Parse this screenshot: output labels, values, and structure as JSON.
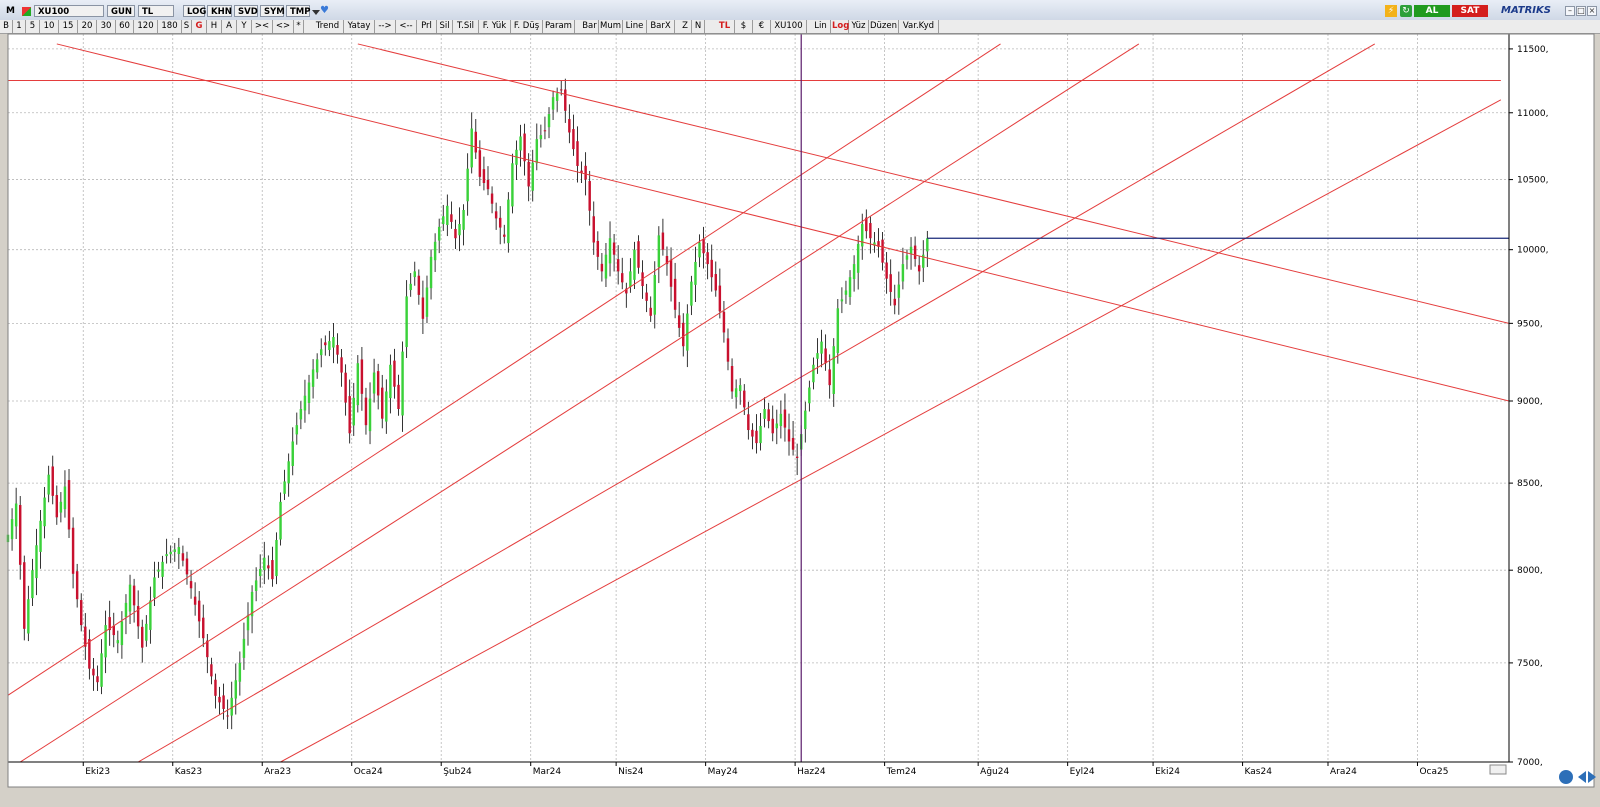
{
  "titlebar": {
    "menu_letter": "M",
    "symbol": "XU100",
    "period": "GUN",
    "currency": "TL",
    "buttons": [
      "LOG",
      "KHN",
      "SVD",
      "SYM",
      "TMP"
    ],
    "buy_label": "AL",
    "sell_label": "SAT",
    "brand": "MATRIKS",
    "colors": {
      "buy": "#1f9a1f",
      "sell": "#d41e1e",
      "brand": "#1b3a8a"
    }
  },
  "toolbar": {
    "items": [
      "B",
      "1",
      "5",
      "10",
      "15",
      "20",
      "30",
      "60",
      "120",
      "180",
      "S",
      "G",
      "H",
      "A",
      "Y",
      "><",
      "<>",
      "*",
      "Trend",
      "Yatay",
      "-->",
      "<--",
      "Prl",
      "Sil",
      "T.Sil",
      "F. Yük",
      "F. Düş",
      "Param",
      "Bar",
      "Mum",
      "Line",
      "BarX",
      "Z",
      "N",
      "TL",
      "$",
      "€",
      "XU100",
      "Lin",
      "Log",
      "Yüz",
      "Düzen",
      "Var.Kyd"
    ],
    "active": [
      "G",
      "TL",
      "Log"
    ]
  },
  "chart_data": {
    "type": "candlestick",
    "symbol": "XU100",
    "scale": "log",
    "grid": true,
    "x_labels": [
      "Eki23",
      "Kas23",
      "Ara23",
      "Oca24",
      "Şub24",
      "Mar24",
      "Nis24",
      "May24",
      "Haz24",
      "Tem24",
      "Ağu24",
      "Eyl24",
      "Eki24",
      "Kas24",
      "Ara24",
      "Oca25"
    ],
    "x_label_positions": [
      0.5,
      22.5,
      44.5,
      66.5,
      88.5,
      110.5,
      131.5,
      153.5,
      175.5,
      197.5,
      220.5,
      242.5,
      263.5,
      285.5,
      306.5,
      328.5
    ],
    "x_range": [
      -18,
      351
    ],
    "y_ticks": [
      7000,
      7500,
      8000,
      8500,
      9000,
      9500,
      10000,
      10500,
      11000,
      11500
    ],
    "y_tick_labels": [
      "7000,",
      "7500,",
      "8000,",
      "8500,",
      "9000,",
      "9500,",
      "10000,",
      "10500,",
      "11000,",
      "11500,"
    ],
    "y_range": [
      7000,
      11620
    ],
    "up_color": "#3ad13a",
    "down_color": "#c8102e",
    "anchors": [
      [
        -18,
        8200
      ],
      [
        -16,
        8380
      ],
      [
        -14,
        7680
      ],
      [
        -12,
        8000
      ],
      [
        -10,
        8280
      ],
      [
        -8,
        8550
      ],
      [
        -6,
        8300
      ],
      [
        -4,
        8480
      ],
      [
        -2,
        7980
      ],
      [
        0,
        7700
      ],
      [
        2,
        7470
      ],
      [
        4,
        7400
      ],
      [
        6,
        7700
      ],
      [
        9,
        7620
      ],
      [
        12,
        7920
      ],
      [
        15,
        7580
      ],
      [
        18,
        7960
      ],
      [
        21,
        8090
      ],
      [
        24,
        8130
      ],
      [
        27,
        7900
      ],
      [
        30,
        7630
      ],
      [
        33,
        7330
      ],
      [
        36,
        7230
      ],
      [
        39,
        7500
      ],
      [
        42,
        7880
      ],
      [
        45,
        8070
      ],
      [
        47,
        7950
      ],
      [
        49,
        8390
      ],
      [
        52,
        8750
      ],
      [
        54,
        8950
      ],
      [
        57,
        9200
      ],
      [
        59,
        9330
      ],
      [
        62,
        9410
      ],
      [
        64,
        9180
      ],
      [
        66,
        8800
      ],
      [
        68,
        9240
      ],
      [
        70,
        8850
      ],
      [
        72,
        9180
      ],
      [
        74,
        8890
      ],
      [
        76,
        9230
      ],
      [
        78,
        8950
      ],
      [
        80,
        9680
      ],
      [
        82,
        9850
      ],
      [
        84,
        9530
      ],
      [
        86,
        9950
      ],
      [
        88,
        10160
      ],
      [
        90,
        10310
      ],
      [
        92,
        10080
      ],
      [
        94,
        10280
      ],
      [
        96,
        10880
      ],
      [
        98,
        10520
      ],
      [
        100,
        10430
      ],
      [
        102,
        10220
      ],
      [
        104,
        10090
      ],
      [
        106,
        10620
      ],
      [
        108,
        10820
      ],
      [
        110,
        10450
      ],
      [
        112,
        10800
      ],
      [
        114,
        10860
      ],
      [
        116,
        11120
      ],
      [
        118,
        11180
      ],
      [
        120,
        10850
      ],
      [
        122,
        10600
      ],
      [
        124,
        10500
      ],
      [
        126,
        10050
      ],
      [
        128,
        9850
      ],
      [
        130,
        10080
      ],
      [
        132,
        9850
      ],
      [
        134,
        9700
      ],
      [
        136,
        10000
      ],
      [
        138,
        9750
      ],
      [
        140,
        9550
      ],
      [
        142,
        10100
      ],
      [
        144,
        9900
      ],
      [
        146,
        9590
      ],
      [
        148,
        9350
      ],
      [
        150,
        9780
      ],
      [
        152,
        10050
      ],
      [
        154,
        9900
      ],
      [
        156,
        9720
      ],
      [
        158,
        9440
      ],
      [
        160,
        9060
      ],
      [
        162,
        9100
      ],
      [
        164,
        8820
      ],
      [
        166,
        8740
      ],
      [
        168,
        8950
      ],
      [
        170,
        8800
      ],
      [
        172,
        8920
      ],
      [
        174,
        8750
      ],
      [
        176,
        8650
      ],
      [
        178,
        8940
      ],
      [
        180,
        9230
      ],
      [
        182,
        9380
      ],
      [
        184,
        9100
      ],
      [
        186,
        9600
      ],
      [
        188,
        9720
      ],
      [
        190,
        9900
      ],
      [
        192,
        10180
      ],
      [
        194,
        10080
      ],
      [
        196,
        10020
      ],
      [
        198,
        9800
      ],
      [
        200,
        9620
      ],
      [
        202,
        9900
      ],
      [
        204,
        10020
      ],
      [
        206,
        9850
      ],
      [
        208,
        10080
      ]
    ],
    "hline": {
      "value": 10080,
      "from_x": 208,
      "color": "#1a2a7a"
    },
    "vline": {
      "x": 177,
      "color": "#5a1a6a"
    },
    "trendlines": [
      {
        "p1": [
          -43,
          7000
        ],
        "p2": [
          226,
          11540
        ],
        "color": "#e43d3d"
      },
      {
        "p1": [
          -15,
          7000
        ],
        "p2": [
          260,
          11540
        ],
        "color": "#e43d3d"
      },
      {
        "p1": [
          14,
          7000
        ],
        "p2": [
          318,
          11540
        ],
        "color": "#e43d3d"
      },
      {
        "p1": [
          49,
          7000
        ],
        "p2": [
          349,
          11100
        ],
        "color": "#e43d3d"
      },
      {
        "p1": [
          -18,
          11250
        ],
        "p2": [
          349,
          11250
        ],
        "color": "#e43d3d"
      },
      {
        "p1": [
          68,
          11540
        ],
        "p2": [
          351,
          9500
        ],
        "color": "#e43d3d"
      },
      {
        "p1": [
          -6,
          11540
        ],
        "p2": [
          351,
          9000
        ],
        "color": "#e43d3d"
      }
    ]
  }
}
